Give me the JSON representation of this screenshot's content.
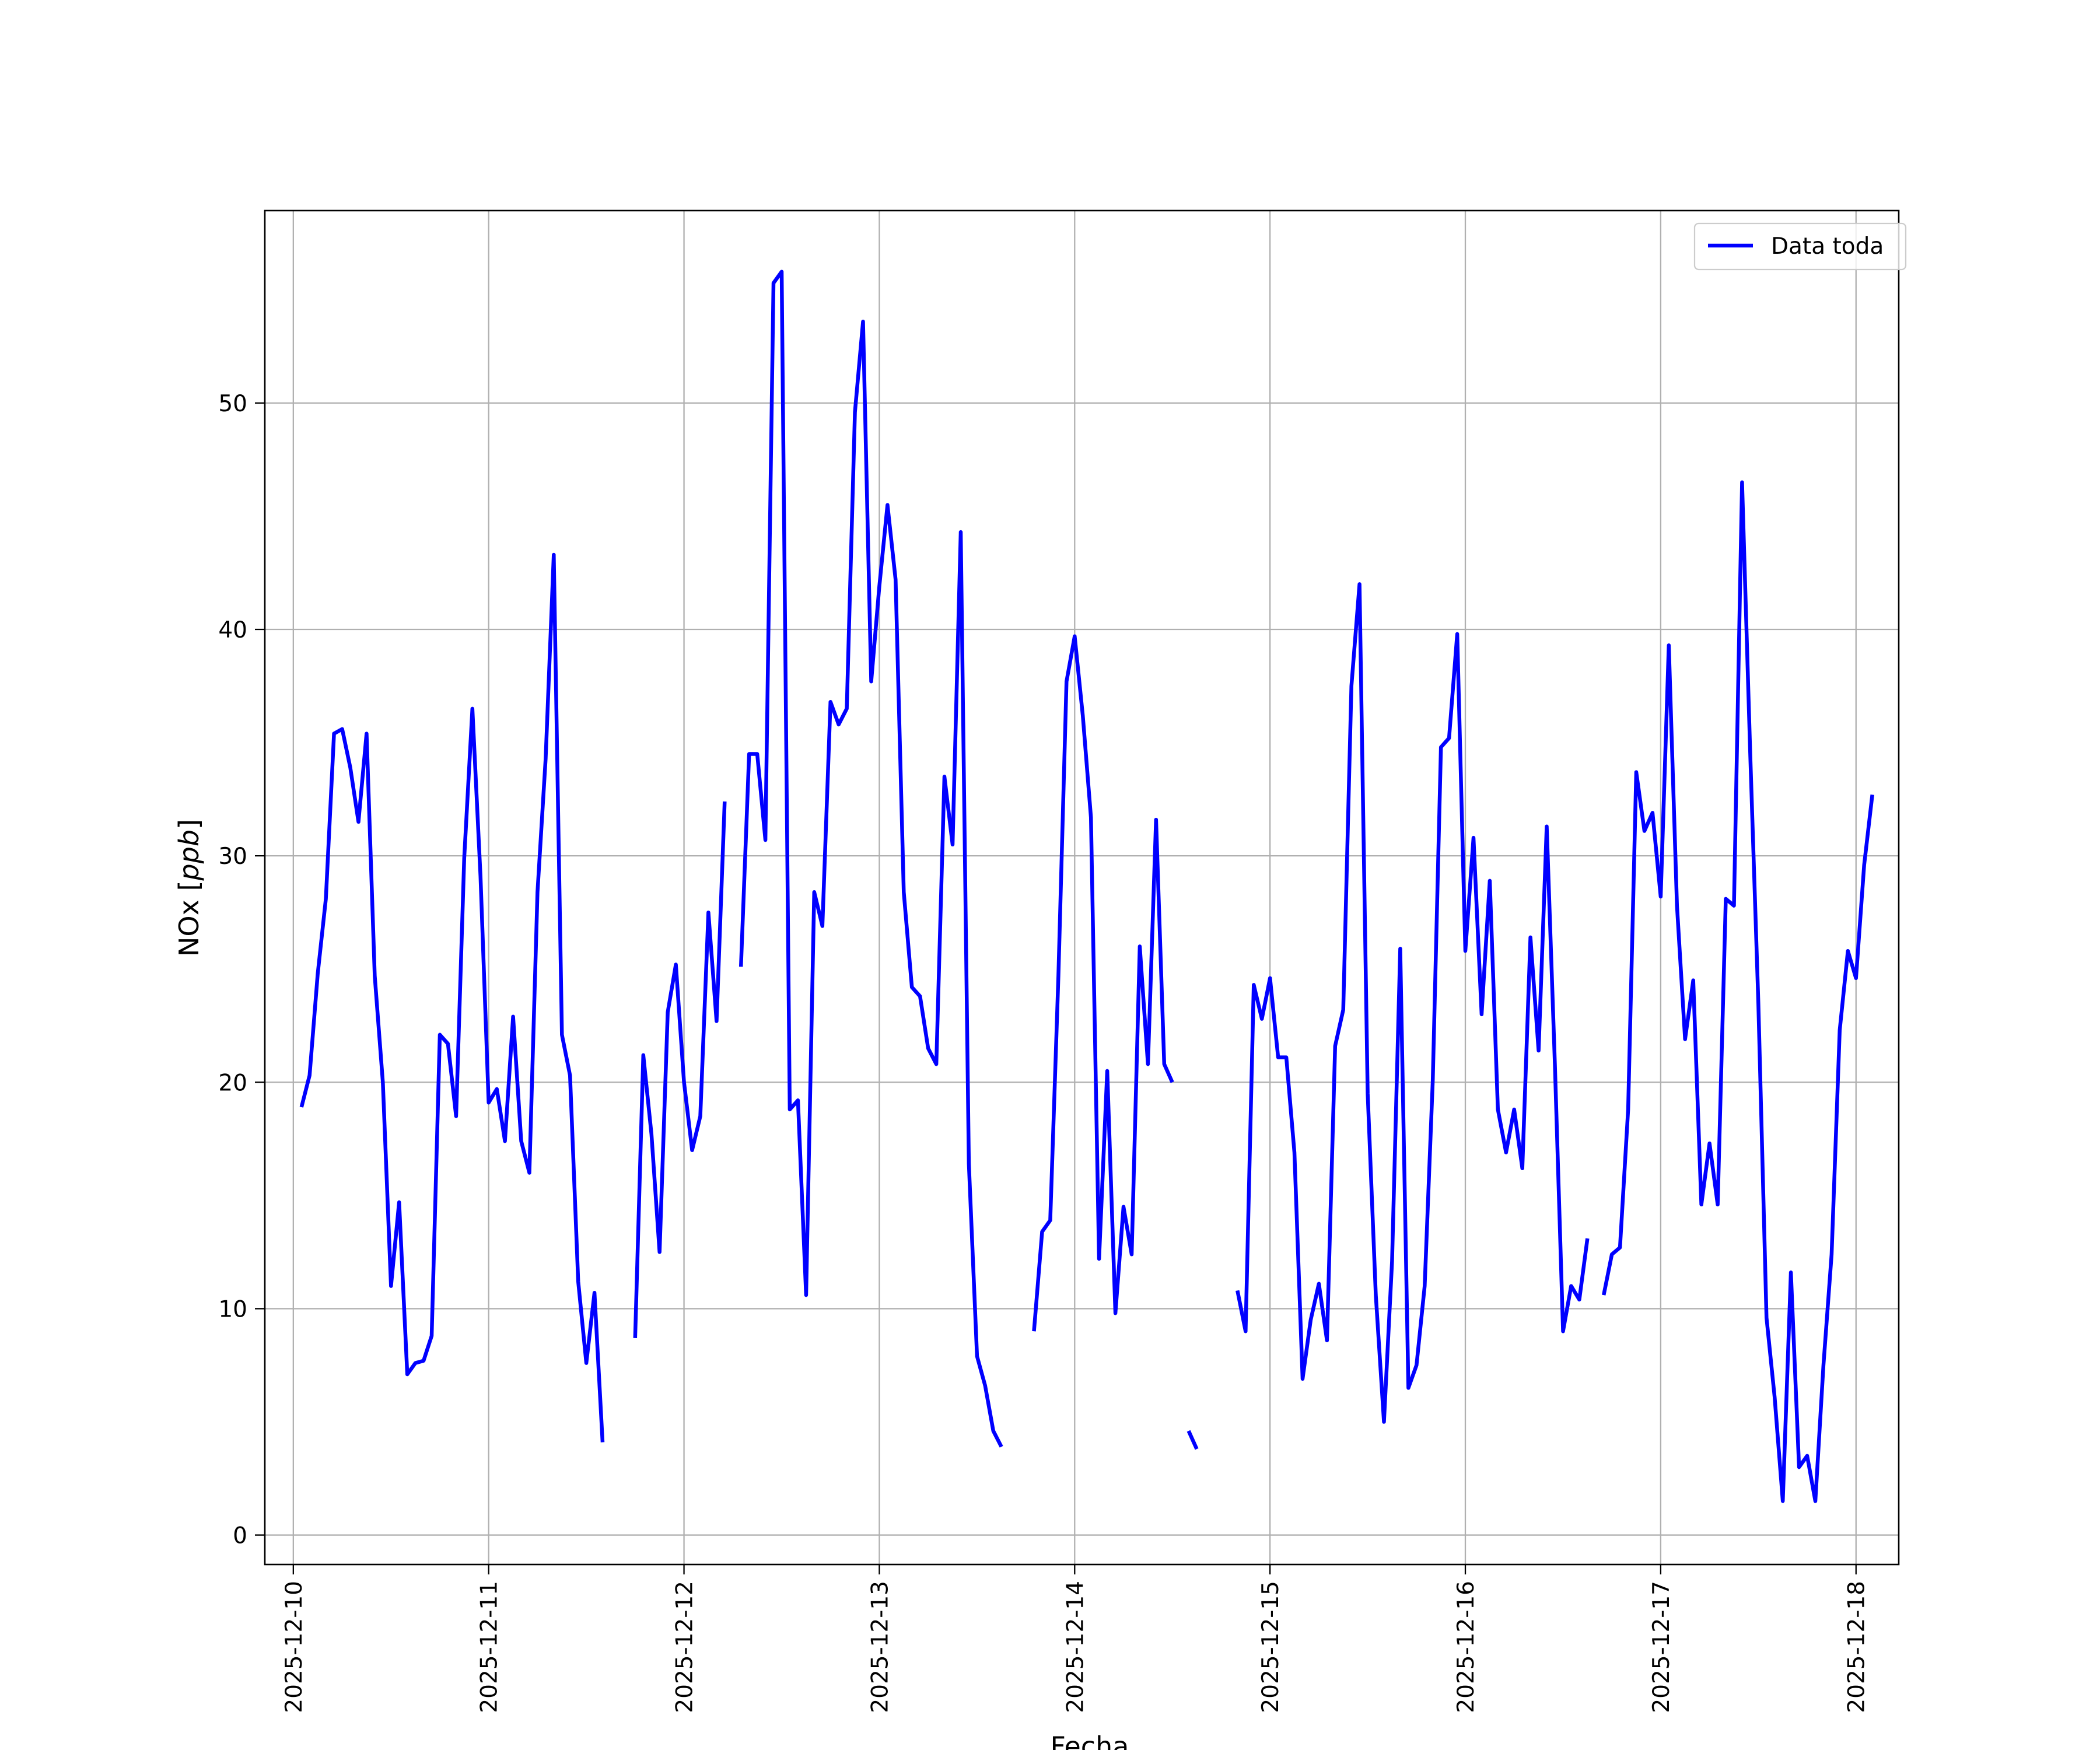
{
  "chart_data": {
    "type": "line",
    "xlabel": "Fecha",
    "ylabel": "NOx [ppb]",
    "ylabel_prefix": "NOx [",
    "ylabel_unit": "ppb",
    "ylabel_suffix": "]",
    "xlim": [
      "2025-12-09T20:30",
      "2025-12-18T05:15"
    ],
    "ylim": [
      -1.3,
      58.5
    ],
    "grid": true,
    "legend_position": "top-right",
    "x_ticks": [
      "2025-12-10",
      "2025-12-11",
      "2025-12-12",
      "2025-12-13",
      "2025-12-14",
      "2025-12-15",
      "2025-12-16",
      "2025-12-17",
      "2025-12-18"
    ],
    "y_ticks": [
      0,
      10,
      20,
      30,
      40,
      50
    ],
    "series": [
      {
        "name": "Data toda",
        "color": "#0000ff",
        "start": "2025-12-10T01:00",
        "step_hours": 1,
        "values": [
          18.9,
          20.3,
          24.8,
          28.1,
          35.4,
          35.6,
          33.9,
          31.5,
          35.4,
          24.7,
          20.0,
          11.0,
          14.7,
          7.1,
          7.6,
          7.7,
          8.8,
          22.1,
          21.7,
          18.5,
          29.9,
          36.5,
          29.1,
          19.1,
          19.7,
          17.4,
          22.9,
          17.4,
          16.0,
          28.4,
          34.3,
          43.3,
          22.1,
          20.3,
          11.2,
          7.6,
          10.7,
          4.1,
          null,
          null,
          null,
          8.7,
          21.2,
          17.7,
          12.5,
          23.1,
          25.2,
          20.0,
          17.0,
          18.5,
          27.5,
          22.7,
          32.4,
          null,
          25.1,
          34.5,
          34.5,
          30.7,
          55.3,
          55.8,
          18.8,
          19.2,
          10.6,
          28.4,
          26.9,
          36.8,
          35.8,
          36.5,
          49.6,
          53.6,
          37.7,
          41.9,
          45.5,
          42.2,
          28.4,
          24.2,
          23.8,
          21.5,
          20.8,
          33.5,
          30.5,
          44.3,
          16.4,
          7.9,
          6.6,
          4.6,
          3.9,
          null,
          null,
          null,
          9.0,
          13.4,
          13.9,
          24.7,
          37.7,
          39.7,
          36.2,
          31.7,
          12.2,
          20.5,
          9.8,
          14.5,
          12.4,
          26.0,
          20.8,
          31.6,
          20.8,
          20.0,
          null,
          4.6,
          3.8,
          null,
          null,
          null,
          null,
          10.8,
          9.0,
          24.3,
          22.8,
          24.6,
          21.1,
          21.1,
          16.9,
          6.9,
          9.5,
          11.1,
          8.6,
          21.6,
          23.2,
          37.5,
          42.0,
          19.5,
          10.6,
          5.0,
          12.1,
          25.9,
          6.5,
          7.5,
          11.0,
          20.1,
          34.8,
          35.2,
          39.8,
          25.8,
          30.8,
          23.0,
          28.9,
          18.8,
          16.9,
          18.8,
          16.2,
          26.4,
          21.4,
          31.3,
          20.8,
          9.0,
          11.0,
          10.4,
          13.1,
          null,
          10.6,
          12.4,
          12.7,
          18.8,
          33.7,
          31.1,
          31.9,
          28.2,
          39.3,
          27.8,
          21.9,
          24.5,
          14.6,
          17.3,
          14.6,
          28.1,
          27.8,
          46.5,
          34.5,
          23.5,
          9.6,
          6.1,
          1.5,
          11.6,
          3.0,
          3.5,
          1.5,
          7.5,
          12.4,
          22.3,
          25.8,
          24.6,
          29.6,
          32.7
        ]
      }
    ]
  }
}
